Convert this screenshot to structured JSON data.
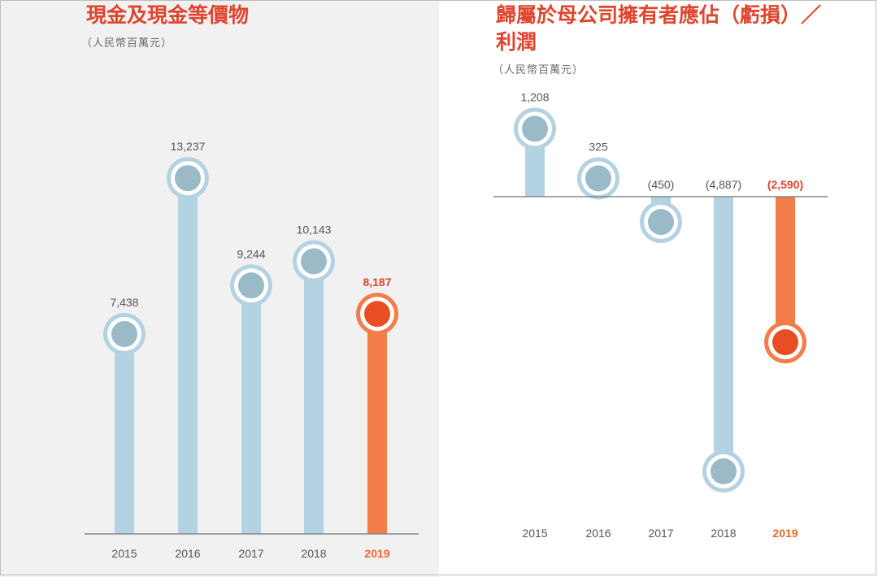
{
  "colors": {
    "bar": "#b3d3e2",
    "marker_ring": "#b3d3e2",
    "marker_core": "#9bbac8",
    "highlight_bar": "#f37d4a",
    "highlight_core": "#e84e24",
    "axis": "#888888",
    "title": "#e0442c"
  },
  "chart_data": [
    {
      "type": "bar",
      "title": "現金及現金等價物",
      "subtitle": "（人民幣百萬元）",
      "categories": [
        "2015",
        "2016",
        "2017",
        "2018",
        "2019"
      ],
      "values": [
        7438,
        13237,
        9244,
        10143,
        8187
      ],
      "value_labels": [
        "7,438",
        "13,237",
        "9,244",
        "10,143",
        "8,187"
      ],
      "highlight": "2019",
      "ylim": [
        0,
        14000
      ]
    },
    {
      "type": "bar",
      "title_line1": "歸屬於母公司擁有者應佔（虧損）／",
      "title_line2": "利潤",
      "subtitle": "（人民幣百萬元）",
      "categories": [
        "2015",
        "2016",
        "2017",
        "2018",
        "2019"
      ],
      "values": [
        1208,
        325,
        -450,
        -4887,
        -2590
      ],
      "value_labels": [
        "1,208",
        "325",
        "(450)",
        "(4,887)",
        "(2,590)"
      ],
      "highlight": "2019",
      "ylim": [
        -5500,
        1500
      ]
    }
  ]
}
